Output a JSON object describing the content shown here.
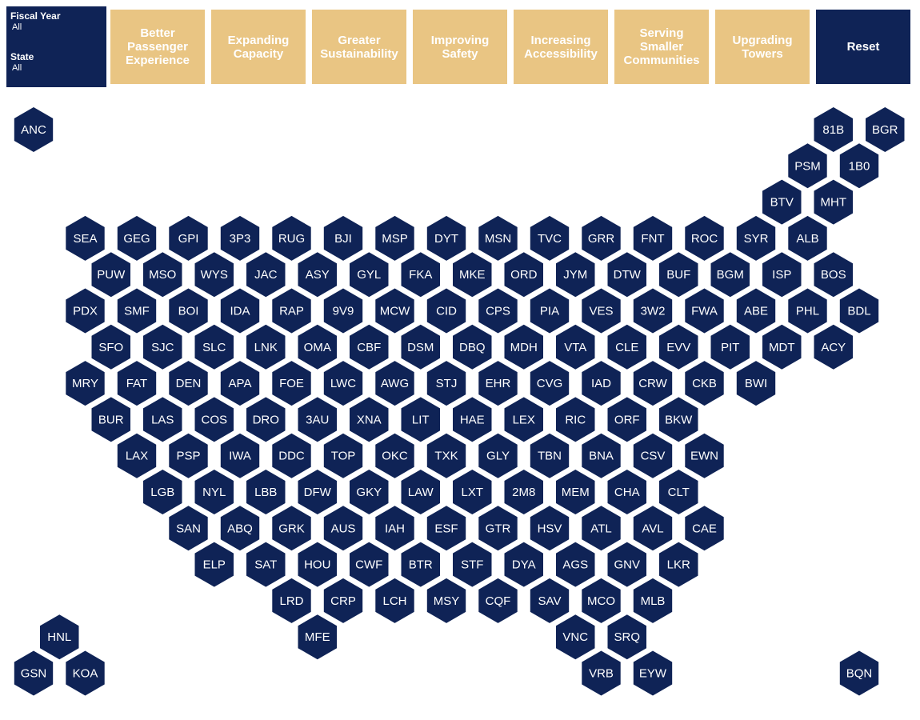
{
  "filters": [
    {
      "label": "Fiscal Year",
      "value": "All"
    },
    {
      "label": "State",
      "value": "All"
    }
  ],
  "buttons": [
    "Better Passenger Experience",
    "Expanding Capacity",
    "Greater Sustainability",
    "Improving Safety",
    "Increasing Accessibility",
    "Serving Smaller Communities",
    "Upgrading Towers"
  ],
  "reset": "Reset",
  "map": {
    "hexes": [
      "ANC",
      "81B",
      "BGR",
      "PSM",
      "1B0",
      "BTV",
      "MHT",
      "SEA",
      "GEG",
      "GPI",
      "3P3",
      "RUG",
      "BJI",
      "MSP",
      "DYT",
      "MSN",
      "TVC",
      "GRR",
      "FNT",
      "ROC",
      "SYR",
      "ALB",
      "PUW",
      "MSO",
      "WYS",
      "JAC",
      "ASY",
      "GYL",
      "FKA",
      "MKE",
      "ORD",
      "JYM",
      "DTW",
      "BUF",
      "BGM",
      "ISP",
      "BOS",
      "PDX",
      "SMF",
      "BOI",
      "IDA",
      "RAP",
      "9V9",
      "MCW",
      "CID",
      "CPS",
      "PIA",
      "VES",
      "3W2",
      "FWA",
      "ABE",
      "PHL",
      "BDL",
      "SFO",
      "SJC",
      "SLC",
      "LNK",
      "OMA",
      "CBF",
      "DSM",
      "DBQ",
      "MDH",
      "VTA",
      "CLE",
      "EVV",
      "PIT",
      "MDT",
      "ACY",
      "MRY",
      "FAT",
      "DEN",
      "APA",
      "FOE",
      "LWC",
      "AWG",
      "STJ",
      "EHR",
      "CVG",
      "IAD",
      "CRW",
      "CKB",
      "BWI",
      "BUR",
      "LAS",
      "COS",
      "DRO",
      "3AU",
      "XNA",
      "LIT",
      "HAE",
      "LEX",
      "RIC",
      "ORF",
      "BKW",
      "LAX",
      "PSP",
      "IWA",
      "DDC",
      "TOP",
      "OKC",
      "TXK",
      "GLY",
      "TBN",
      "BNA",
      "CSV",
      "EWN",
      "LGB",
      "NYL",
      "LBB",
      "DFW",
      "GKY",
      "LAW",
      "LXT",
      "2M8",
      "MEM",
      "CHA",
      "CLT",
      "SAN",
      "ABQ",
      "GRK",
      "AUS",
      "IAH",
      "ESF",
      "GTR",
      "HSV",
      "ATL",
      "AVL",
      "CAE",
      "ELP",
      "SAT",
      "HOU",
      "CWF",
      "BTR",
      "STF",
      "DYA",
      "AGS",
      "GNV",
      "LKR",
      "LRD",
      "CRP",
      "LCH",
      "MSY",
      "CQF",
      "SAV",
      "MCO",
      "MLB",
      "HNL",
      "MFE",
      "VNC",
      "SRQ",
      "GSN",
      "KOA",
      "VRB",
      "EYW",
      "BQN"
    ]
  }
}
